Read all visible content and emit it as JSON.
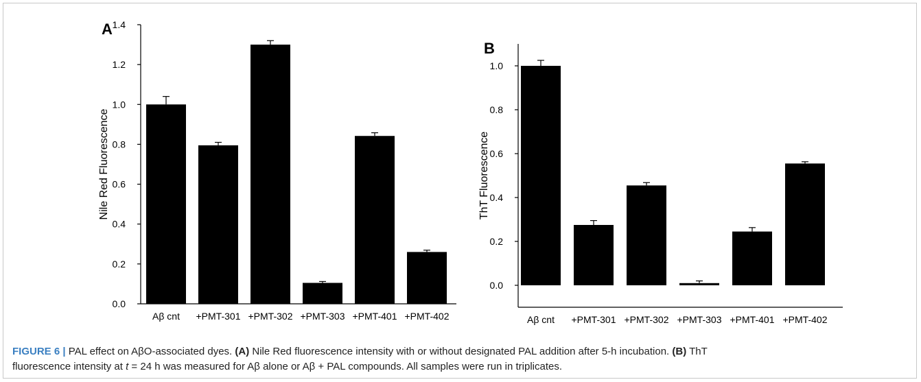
{
  "chart_data": [
    {
      "type": "bar",
      "panel_label": "A",
      "ylabel": "Nile Red Fluorescence",
      "xlabel": "",
      "categories": [
        "Aβ cnt",
        "+PMT-301",
        "+PMT-302",
        "+PMT-303",
        "+PMT-401",
        "+PMT-402"
      ],
      "values": [
        1.0,
        0.795,
        1.3,
        0.105,
        0.842,
        0.26
      ],
      "errors": [
        0.04,
        0.015,
        0.02,
        0.007,
        0.016,
        0.009
      ],
      "ylim": [
        0,
        1.4
      ],
      "yticks": [
        0.0,
        0.2,
        0.4,
        0.6,
        0.8,
        1.0,
        1.2,
        1.4
      ],
      "ytick_labels": [
        "0.0",
        "0.2",
        "0.4",
        "0.6",
        "0.8",
        "1.0",
        "1.2",
        "1.4"
      ],
      "bar_color": "#000000",
      "grid": false
    },
    {
      "type": "bar",
      "panel_label": "B",
      "ylabel": "ThT Fluorescence",
      "xlabel": "",
      "categories": [
        "Aβ cnt",
        "+PMT-301",
        "+PMT-302",
        "+PMT-303",
        "+PMT-401",
        "+PMT-402"
      ],
      "values": [
        1.0,
        0.275,
        0.455,
        0.01,
        0.245,
        0.555
      ],
      "errors": [
        0.025,
        0.02,
        0.013,
        0.01,
        0.018,
        0.008
      ],
      "ylim": [
        -0.1,
        1.1
      ],
      "yticks": [
        0.0,
        0.2,
        0.4,
        0.6,
        0.8,
        1.0
      ],
      "ytick_labels": [
        "0.0",
        "0.2",
        "0.4",
        "0.6",
        "0.8",
        "1.0"
      ],
      "bar_color": "#000000",
      "grid": false
    }
  ],
  "caption": {
    "figure_label": "FIGURE 6 |",
    "line1_a": " PAL effect on AβO-associated dyes. ",
    "tag_a": "(A)",
    "line1_b": " Nile Red fluorescence intensity with or without designated PAL addition after 5-h incubation. ",
    "tag_b": "(B)",
    "line1_c": " ThT",
    "line2_a": "fluorescence intensity at ",
    "line2_t": "t",
    "line2_b": " = 24 h was measured for Aβ alone or Aβ + PAL compounds. All samples were run in triplicates."
  }
}
